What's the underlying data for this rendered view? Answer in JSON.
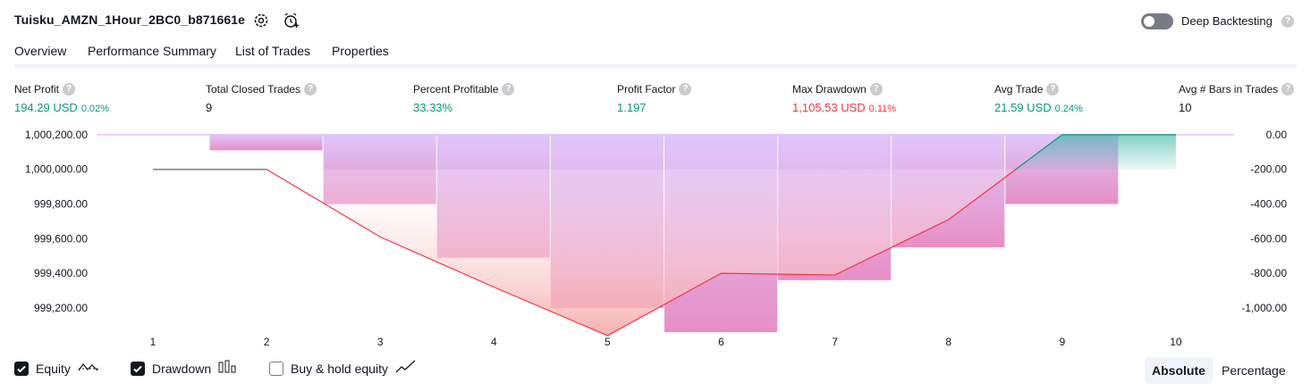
{
  "header": {
    "title": "Tuisku_AMZN_1Hour_2BC0_b871661e",
    "deep_backtesting_label": "Deep Backtesting",
    "help_glyph": "?"
  },
  "tabs": [
    {
      "label": "Overview",
      "active": true
    },
    {
      "label": "Performance Summary",
      "active": false
    },
    {
      "label": "List of Trades",
      "active": false
    },
    {
      "label": "Properties",
      "active": false
    }
  ],
  "stats": [
    {
      "label": "Net Profit",
      "value": "194.29 USD",
      "pct": "0.02%",
      "color": "green"
    },
    {
      "label": "Total Closed Trades",
      "value": "9",
      "pct": "",
      "color": "dark"
    },
    {
      "label": "Percent Profitable",
      "value": "33.33%",
      "pct": "",
      "color": "green"
    },
    {
      "label": "Profit Factor",
      "value": "1.197",
      "pct": "",
      "color": "green"
    },
    {
      "label": "Max Drawdown",
      "value": "1,105.53 USD",
      "pct": "0.11%",
      "color": "red"
    },
    {
      "label": "Avg Trade",
      "value": "21.59 USD",
      "pct": "0.24%",
      "color": "green"
    },
    {
      "label": "Avg # Bars in Trades",
      "value": "10",
      "pct": "",
      "color": "dark"
    }
  ],
  "chart_data": {
    "type": "line",
    "x": [
      1,
      2,
      3,
      4,
      5,
      6,
      7,
      8,
      9,
      10
    ],
    "left_ticks": [
      "1,000,200.00",
      "1,000,000.00",
      "999,800.00",
      "999,600.00",
      "999,400.00",
      "999,200.00"
    ],
    "right_ticks": [
      "0.00",
      "-200.00",
      "-400.00",
      "-600.00",
      "-800.00",
      "-1,000.00"
    ],
    "left_ylim": [
      999050,
      1000215
    ],
    "right_ylim": [
      -1150,
      15
    ],
    "equity": [
      1000000,
      1000000,
      999610,
      999320,
      999040,
      999400,
      999390,
      999710,
      1000200,
      1000200
    ],
    "drawdown": [
      0,
      -90,
      -400,
      -710,
      -1000,
      -1140,
      -840,
      -650,
      -400,
      0
    ],
    "equity_color": "#f23645",
    "equity_flat_color": "#787b86",
    "equity_positive_color": "#089981",
    "drawdown_color": "#ddc3fb",
    "drawdown_deep_color": "#e589c2"
  },
  "legend": [
    {
      "label": "Equity",
      "checked": true,
      "icon": "equity-line-icon"
    },
    {
      "label": "Drawdown",
      "checked": true,
      "icon": "drawdown-bars-icon"
    },
    {
      "label": "Buy & hold equity",
      "checked": false,
      "icon": "buy-hold-line-icon"
    }
  ],
  "view_toggle": {
    "absolute_label": "Absolute",
    "percentage_label": "Percentage",
    "active": "Absolute"
  }
}
